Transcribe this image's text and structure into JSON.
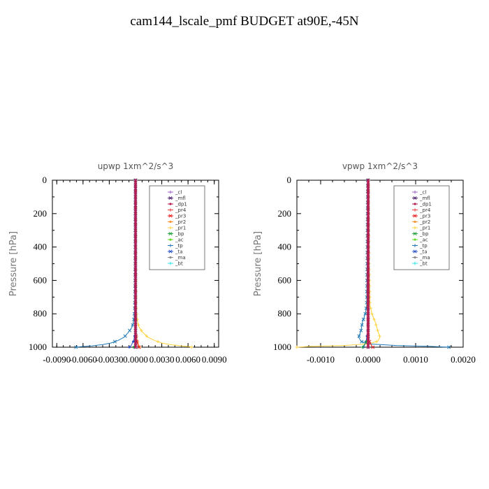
{
  "title": "cam144_lscale_pmf  BUDGET at90E,-45N",
  "chart_data": [
    {
      "type": "line",
      "title": "upwp   1xm^2/s^3",
      "ylabel": "Pressure [hPa]",
      "xlabel": "",
      "xlim": [
        -0.0095,
        0.0095
      ],
      "ylim": [
        1000,
        0
      ],
      "xticks": [
        -0.009,
        -0.006,
        -0.003,
        0.0,
        0.003,
        0.006,
        0.009
      ],
      "xtick_labels": [
        "-0.0090",
        "-0.0060",
        "-0.0030",
        "0.0000",
        "0.0030",
        "0.0060",
        "0.0090"
      ],
      "yticks": [
        0,
        200,
        400,
        600,
        800,
        1000
      ],
      "ytick_labels": [
        "0",
        "200",
        "400",
        "600",
        "800",
        "1000"
      ],
      "legend": [
        "_cl",
        "_mfl",
        "_dp1",
        "_pr4",
        "_pr3",
        "_pr2",
        "_pr1",
        "_bp",
        "_ac",
        "_tp",
        "_ta",
        "_ma",
        "_bt"
      ],
      "legend_position": "top-right",
      "series": [
        {
          "name": "_pr1",
          "color": "#ffd23c",
          "p": [
            0,
            100,
            300,
            500,
            700,
            780,
            840,
            880,
            910,
            940,
            960,
            975,
            985,
            992,
            997,
            1000
          ],
          "x": [
            2e-05,
            2e-05,
            3e-05,
            4e-05,
            6e-05,
            0.0001,
            0.0002,
            0.0004,
            0.0008,
            0.0014,
            0.0022,
            0.003,
            0.004,
            0.0052,
            0.0062,
            0.0064
          ]
        },
        {
          "name": "_tp",
          "color": "#1e78b4",
          "p": [
            0,
            100,
            300,
            500,
            700,
            780,
            840,
            880,
            910,
            940,
            960,
            975,
            985,
            992,
            997,
            1000
          ],
          "x": [
            -2e-05,
            -2e-05,
            -3e-05,
            -4e-05,
            -6e-05,
            -0.0001,
            -0.0002,
            -0.0004,
            -0.0008,
            -0.0013,
            -0.002,
            -0.0028,
            -0.0038,
            -0.005,
            -0.0062,
            -0.0068
          ]
        },
        {
          "name": "_ta",
          "color": "#2850c8",
          "p": [
            0,
            500,
            900,
            960,
            990,
            1000
          ],
          "x": [
            0.0,
            0.0,
            0.0,
            -0.0002,
            -0.0005,
            -0.0007
          ]
        },
        {
          "name": "_pr2",
          "color": "#ff9632",
          "p": [
            0,
            500,
            900,
            960,
            990,
            1000
          ],
          "x": [
            0.0,
            0.0,
            0.0,
            0.0002,
            0.0004,
            0.0005
          ]
        },
        {
          "name": "_pr3",
          "color": "#e61e1e",
          "p": [
            0,
            500,
            900,
            960,
            990,
            1000
          ],
          "x": [
            0.0,
            0.0,
            0.0,
            0.0001,
            0.0003,
            0.0004
          ]
        },
        {
          "name": "_bp",
          "color": "#1ea03c",
          "p": [
            0,
            500,
            950,
            990,
            1000
          ],
          "x": [
            0.0,
            0.0,
            0.0,
            -0.0001,
            -0.0002
          ]
        },
        {
          "name": "_cl",
          "color": "#9b5fc8",
          "p": [
            0,
            200,
            400,
            600,
            800,
            1000
          ],
          "x": [
            0.0,
            0.0,
            0.0,
            0.0,
            0.0,
            0.0
          ]
        },
        {
          "name": "_mfl",
          "color": "#4b1e6e",
          "p": [
            0,
            200,
            400,
            600,
            800,
            1000
          ],
          "x": [
            0.0,
            0.0,
            0.0,
            0.0,
            0.0,
            0.0
          ]
        },
        {
          "name": "_dp1",
          "color": "#b41e50",
          "p": [
            0,
            200,
            400,
            600,
            800,
            1000
          ],
          "x": [
            0.0,
            0.0,
            0.0,
            0.0,
            0.0,
            0.0
          ]
        }
      ]
    },
    {
      "type": "line",
      "title": "vpwp   1xm^2/s^3",
      "ylabel": "Pressure [hPa]",
      "xlabel": "",
      "xlim": [
        -0.0015,
        0.002
      ],
      "ylim": [
        1000,
        0
      ],
      "xticks": [
        -0.001,
        0.0,
        0.001,
        0.002
      ],
      "xtick_labels": [
        "-0.0010",
        "0.0000",
        "0.0010",
        "0.0020"
      ],
      "yticks": [
        0,
        200,
        400,
        600,
        800,
        1000
      ],
      "ytick_labels": [
        "0",
        "200",
        "400",
        "600",
        "800",
        "1000"
      ],
      "legend": [
        "_cl",
        "_mfl",
        "_dp1",
        "_pr4",
        "_pr3",
        "_pr2",
        "_pr1",
        "_bp",
        "_ac",
        "_tp",
        "_ta",
        "_ma",
        "_bt"
      ],
      "legend_position": "top-right",
      "series": [
        {
          "name": "_pr1",
          "color": "#ffd23c",
          "p": [
            0,
            500,
            750,
            800,
            850,
            900,
            940,
            965,
            980,
            990,
            995,
            1000
          ],
          "x": [
            1e-05,
            2e-05,
            4e-05,
            8e-05,
            0.00015,
            0.0002,
            0.00025,
            0.0002,
            0.0,
            -0.0005,
            -0.0012,
            -0.0016
          ]
        },
        {
          "name": "_tp",
          "color": "#1e78b4",
          "p": [
            0,
            500,
            750,
            800,
            850,
            900,
            940,
            965,
            980,
            990,
            995,
            1000
          ],
          "x": [
            -1e-05,
            -2e-05,
            -3e-05,
            -6e-05,
            -0.00012,
            -0.00015,
            -0.0002,
            -0.00015,
            0.0,
            0.0006,
            0.0013,
            0.0017
          ]
        },
        {
          "name": "_ta",
          "color": "#2850c8",
          "p": [
            0,
            500,
            900,
            960,
            990,
            1000
          ],
          "x": [
            0.0,
            0.0,
            -1e-05,
            -4e-05,
            -8e-05,
            -0.0001
          ]
        },
        {
          "name": "_bp",
          "color": "#1ea03c",
          "p": [
            0,
            500,
            950,
            985,
            1000
          ],
          "x": [
            0.0,
            0.0,
            0.0,
            -8e-05,
            -0.00012
          ]
        },
        {
          "name": "_pr3",
          "color": "#e61e1e",
          "p": [
            0,
            500,
            950,
            985,
            1000
          ],
          "x": [
            0.0,
            0.0,
            0.0,
            6e-05,
            0.0001
          ]
        },
        {
          "name": "_cl",
          "color": "#9b5fc8",
          "p": [
            0,
            200,
            400,
            600,
            800,
            1000
          ],
          "x": [
            0.0,
            0.0,
            0.0,
            0.0,
            0.0,
            0.0
          ]
        },
        {
          "name": "_mfl",
          "color": "#4b1e6e",
          "p": [
            0,
            200,
            400,
            600,
            800,
            1000
          ],
          "x": [
            0.0,
            0.0,
            0.0,
            0.0,
            0.0,
            0.0
          ]
        },
        {
          "name": "_dp1",
          "color": "#b41e50",
          "p": [
            0,
            200,
            400,
            600,
            800,
            1000
          ],
          "x": [
            0.0,
            0.0,
            0.0,
            0.0,
            0.0,
            0.0
          ]
        }
      ]
    }
  ],
  "legend_colors": {
    "_cl": "#9b5fc8",
    "_mfl": "#4b1e6e",
    "_dp1": "#b41e50",
    "_pr4": "#e63c3c",
    "_pr3": "#e61e1e",
    "_pr2": "#ff9632",
    "_pr1": "#ffd23c",
    "_bp": "#1ea03c",
    "_ac": "#64dc28",
    "_tp": "#1e78b4",
    "_ta": "#2850c8",
    "_ma": "#8c8c8c",
    "_bt": "#28e6e6"
  }
}
